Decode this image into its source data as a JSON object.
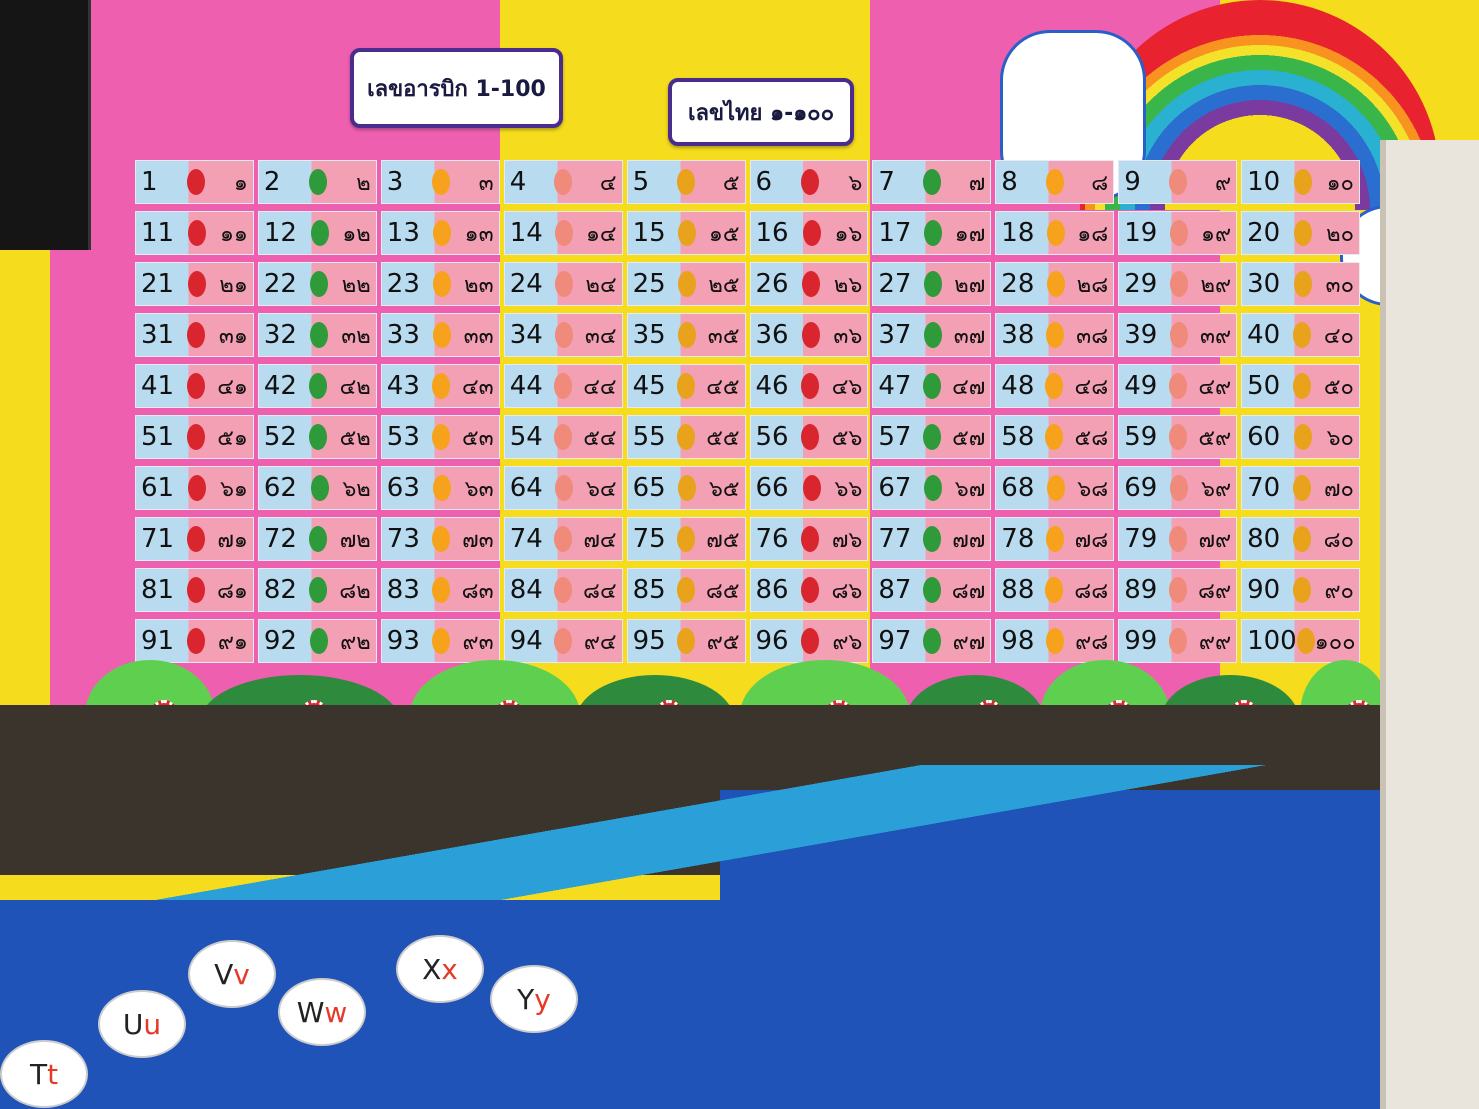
{
  "signs": {
    "arabic": "เลขอารบิก 1-100",
    "thai": "เลขไทย ๑-๑๐๐"
  },
  "colors": {
    "pink": "#ee5fb0",
    "yellow": "#f5dc1c",
    "card_blue": "#b9dbf0",
    "card_pink": "#f4a0b4",
    "board_blue": "#1f53b8"
  },
  "column_icons": [
    "strawberry-icon",
    "watermelon-icon",
    "sun-icon",
    "popsicle-icon",
    "pineapple-icon",
    "strawberry-icon",
    "watermelon-icon",
    "sun-icon",
    "popsicle-icon",
    "pineapple-icon"
  ],
  "cards": [
    [
      "1",
      "๑"
    ],
    [
      "2",
      "๒"
    ],
    [
      "3",
      "๓"
    ],
    [
      "4",
      "๔"
    ],
    [
      "5",
      "๕"
    ],
    [
      "6",
      "๖"
    ],
    [
      "7",
      "๗"
    ],
    [
      "8",
      "๘"
    ],
    [
      "9",
      "๙"
    ],
    [
      "10",
      "๑๐"
    ],
    [
      "11",
      "๑๑"
    ],
    [
      "12",
      "๑๒"
    ],
    [
      "13",
      "๑๓"
    ],
    [
      "14",
      "๑๔"
    ],
    [
      "15",
      "๑๕"
    ],
    [
      "16",
      "๑๖"
    ],
    [
      "17",
      "๑๗"
    ],
    [
      "18",
      "๑๘"
    ],
    [
      "19",
      "๑๙"
    ],
    [
      "20",
      "๒๐"
    ],
    [
      "21",
      "๒๑"
    ],
    [
      "22",
      "๒๒"
    ],
    [
      "23",
      "๒๓"
    ],
    [
      "24",
      "๒๔"
    ],
    [
      "25",
      "๒๕"
    ],
    [
      "26",
      "๒๖"
    ],
    [
      "27",
      "๒๗"
    ],
    [
      "28",
      "๒๘"
    ],
    [
      "29",
      "๒๙"
    ],
    [
      "30",
      "๓๐"
    ],
    [
      "31",
      "๓๑"
    ],
    [
      "32",
      "๓๒"
    ],
    [
      "33",
      "๓๓"
    ],
    [
      "34",
      "๓๔"
    ],
    [
      "35",
      "๓๕"
    ],
    [
      "36",
      "๓๖"
    ],
    [
      "37",
      "๓๗"
    ],
    [
      "38",
      "๓๘"
    ],
    [
      "39",
      "๓๙"
    ],
    [
      "40",
      "๔๐"
    ],
    [
      "41",
      "๔๑"
    ],
    [
      "42",
      "๔๒"
    ],
    [
      "43",
      "๔๓"
    ],
    [
      "44",
      "๔๔"
    ],
    [
      "45",
      "๔๕"
    ],
    [
      "46",
      "๔๖"
    ],
    [
      "47",
      "๔๗"
    ],
    [
      "48",
      "๔๘"
    ],
    [
      "49",
      "๔๙"
    ],
    [
      "50",
      "๕๐"
    ],
    [
      "51",
      "๕๑"
    ],
    [
      "52",
      "๕๒"
    ],
    [
      "53",
      "๕๓"
    ],
    [
      "54",
      "๕๔"
    ],
    [
      "55",
      "๕๕"
    ],
    [
      "56",
      "๕๖"
    ],
    [
      "57",
      "๕๗"
    ],
    [
      "58",
      "๕๘"
    ],
    [
      "59",
      "๕๙"
    ],
    [
      "60",
      "๖๐"
    ],
    [
      "61",
      "๖๑"
    ],
    [
      "62",
      "๖๒"
    ],
    [
      "63",
      "๖๓"
    ],
    [
      "64",
      "๖๔"
    ],
    [
      "65",
      "๖๕"
    ],
    [
      "66",
      "๖๖"
    ],
    [
      "67",
      "๖๗"
    ],
    [
      "68",
      "๖๘"
    ],
    [
      "69",
      "๖๙"
    ],
    [
      "70",
      "๗๐"
    ],
    [
      "71",
      "๗๑"
    ],
    [
      "72",
      "๗๒"
    ],
    [
      "73",
      "๗๓"
    ],
    [
      "74",
      "๗๔"
    ],
    [
      "75",
      "๗๕"
    ],
    [
      "76",
      "๗๖"
    ],
    [
      "77",
      "๗๗"
    ],
    [
      "78",
      "๗๘"
    ],
    [
      "79",
      "๗๙"
    ],
    [
      "80",
      "๘๐"
    ],
    [
      "81",
      "๘๑"
    ],
    [
      "82",
      "๘๒"
    ],
    [
      "83",
      "๘๓"
    ],
    [
      "84",
      "๘๔"
    ],
    [
      "85",
      "๘๕"
    ],
    [
      "86",
      "๘๖"
    ],
    [
      "87",
      "๘๗"
    ],
    [
      "88",
      "๘๘"
    ],
    [
      "89",
      "๘๙"
    ],
    [
      "90",
      "๙๐"
    ],
    [
      "91",
      "๙๑"
    ],
    [
      "92",
      "๙๒"
    ],
    [
      "93",
      "๙๓"
    ],
    [
      "94",
      "๙๔"
    ],
    [
      "95",
      "๙๕"
    ],
    [
      "96",
      "๙๖"
    ],
    [
      "97",
      "๙๗"
    ],
    [
      "98",
      "๙๘"
    ],
    [
      "99",
      "๙๙"
    ],
    [
      "100",
      "๑๐๐"
    ]
  ],
  "letters": [
    {
      "upper": "T",
      "lower": "t"
    },
    {
      "upper": "U",
      "lower": "u"
    },
    {
      "upper": "V",
      "lower": "v"
    },
    {
      "upper": "W",
      "lower": "w"
    },
    {
      "upper": "X",
      "lower": "x"
    },
    {
      "upper": "Y",
      "lower": "y"
    }
  ]
}
